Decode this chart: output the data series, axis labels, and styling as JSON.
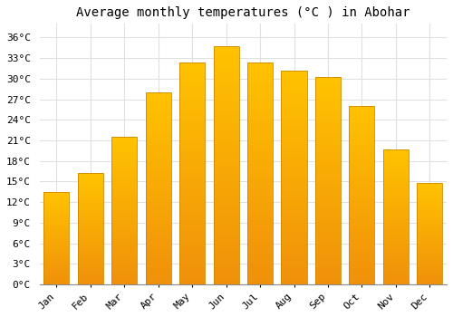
{
  "title": "Average monthly temperatures (°C ) in Abohar",
  "months": [
    "Jan",
    "Feb",
    "Mar",
    "Apr",
    "May",
    "Jun",
    "Jul",
    "Aug",
    "Sep",
    "Oct",
    "Nov",
    "Dec"
  ],
  "temperatures": [
    13.5,
    16.2,
    21.5,
    28.0,
    32.3,
    34.7,
    32.4,
    31.2,
    30.2,
    26.0,
    19.7,
    14.8
  ],
  "bar_color_top": "#FFC200",
  "bar_color_bottom": "#F0900A",
  "bar_edge_color": "#CC8800",
  "ylim": [
    0,
    38
  ],
  "yticks": [
    0,
    3,
    6,
    9,
    12,
    15,
    18,
    21,
    24,
    27,
    30,
    33,
    36
  ],
  "background_color": "#ffffff",
  "grid_color": "#e0e0e0",
  "title_fontsize": 10,
  "tick_fontsize": 8,
  "font_family": "monospace"
}
